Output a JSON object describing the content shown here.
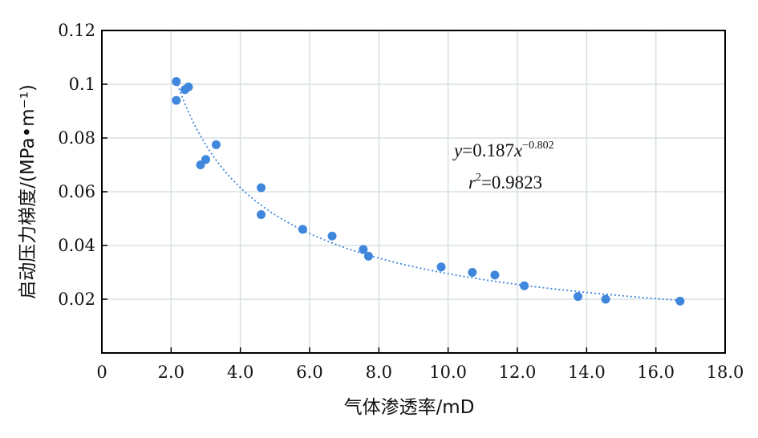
{
  "chart_data": {
    "type": "scatter",
    "xlabel": "气体渗透率/mD",
    "ylabel": "启动压力梯度/(MPa•m⁻¹)",
    "xlim": [
      0,
      18
    ],
    "ylim": [
      0,
      0.12
    ],
    "x_ticks": [
      0,
      2,
      4,
      6,
      8,
      10,
      12,
      14,
      16,
      18
    ],
    "x_tick_labels": [
      "0",
      "2.0",
      "4.0",
      "6.0",
      "8.0",
      "10.0",
      "12.0",
      "14.0",
      "16.0",
      "18.0"
    ],
    "y_ticks": [
      0.02,
      0.04,
      0.06,
      0.08,
      0.1,
      0.12
    ],
    "y_tick_labels": [
      "0.02",
      "0.04",
      "0.06",
      "0.08",
      "0.1",
      "0.12"
    ],
    "grid": true,
    "series": [
      {
        "color": "#3f86dd",
        "points": [
          {
            "x": 2.15,
            "y": 0.101
          },
          {
            "x": 2.15,
            "y": 0.094
          },
          {
            "x": 2.4,
            "y": 0.098
          },
          {
            "x": 2.5,
            "y": 0.099
          },
          {
            "x": 2.85,
            "y": 0.07
          },
          {
            "x": 3.0,
            "y": 0.072
          },
          {
            "x": 3.3,
            "y": 0.0775
          },
          {
            "x": 4.6,
            "y": 0.0615
          },
          {
            "x": 4.6,
            "y": 0.0515
          },
          {
            "x": 5.8,
            "y": 0.046
          },
          {
            "x": 6.65,
            "y": 0.0435
          },
          {
            "x": 7.55,
            "y": 0.0385
          },
          {
            "x": 7.7,
            "y": 0.036
          },
          {
            "x": 9.8,
            "y": 0.032
          },
          {
            "x": 10.7,
            "y": 0.03
          },
          {
            "x": 11.35,
            "y": 0.029
          },
          {
            "x": 12.2,
            "y": 0.025
          },
          {
            "x": 13.75,
            "y": 0.021
          },
          {
            "x": 14.55,
            "y": 0.02
          },
          {
            "x": 16.7,
            "y": 0.0193
          }
        ]
      }
    ],
    "fit": {
      "coefficient": 0.187,
      "exponent": -0.802,
      "x_range": [
        2.15,
        16.7
      ],
      "style": "dotted",
      "color": "#3f86dd"
    },
    "annotations": {
      "eq_y": "y",
      "eq_equals": "=0.187",
      "eq_x": "x",
      "eq_exp": "−0.802",
      "r_label": "r",
      "r_exp": "2",
      "r_value": "=0.9823"
    }
  }
}
